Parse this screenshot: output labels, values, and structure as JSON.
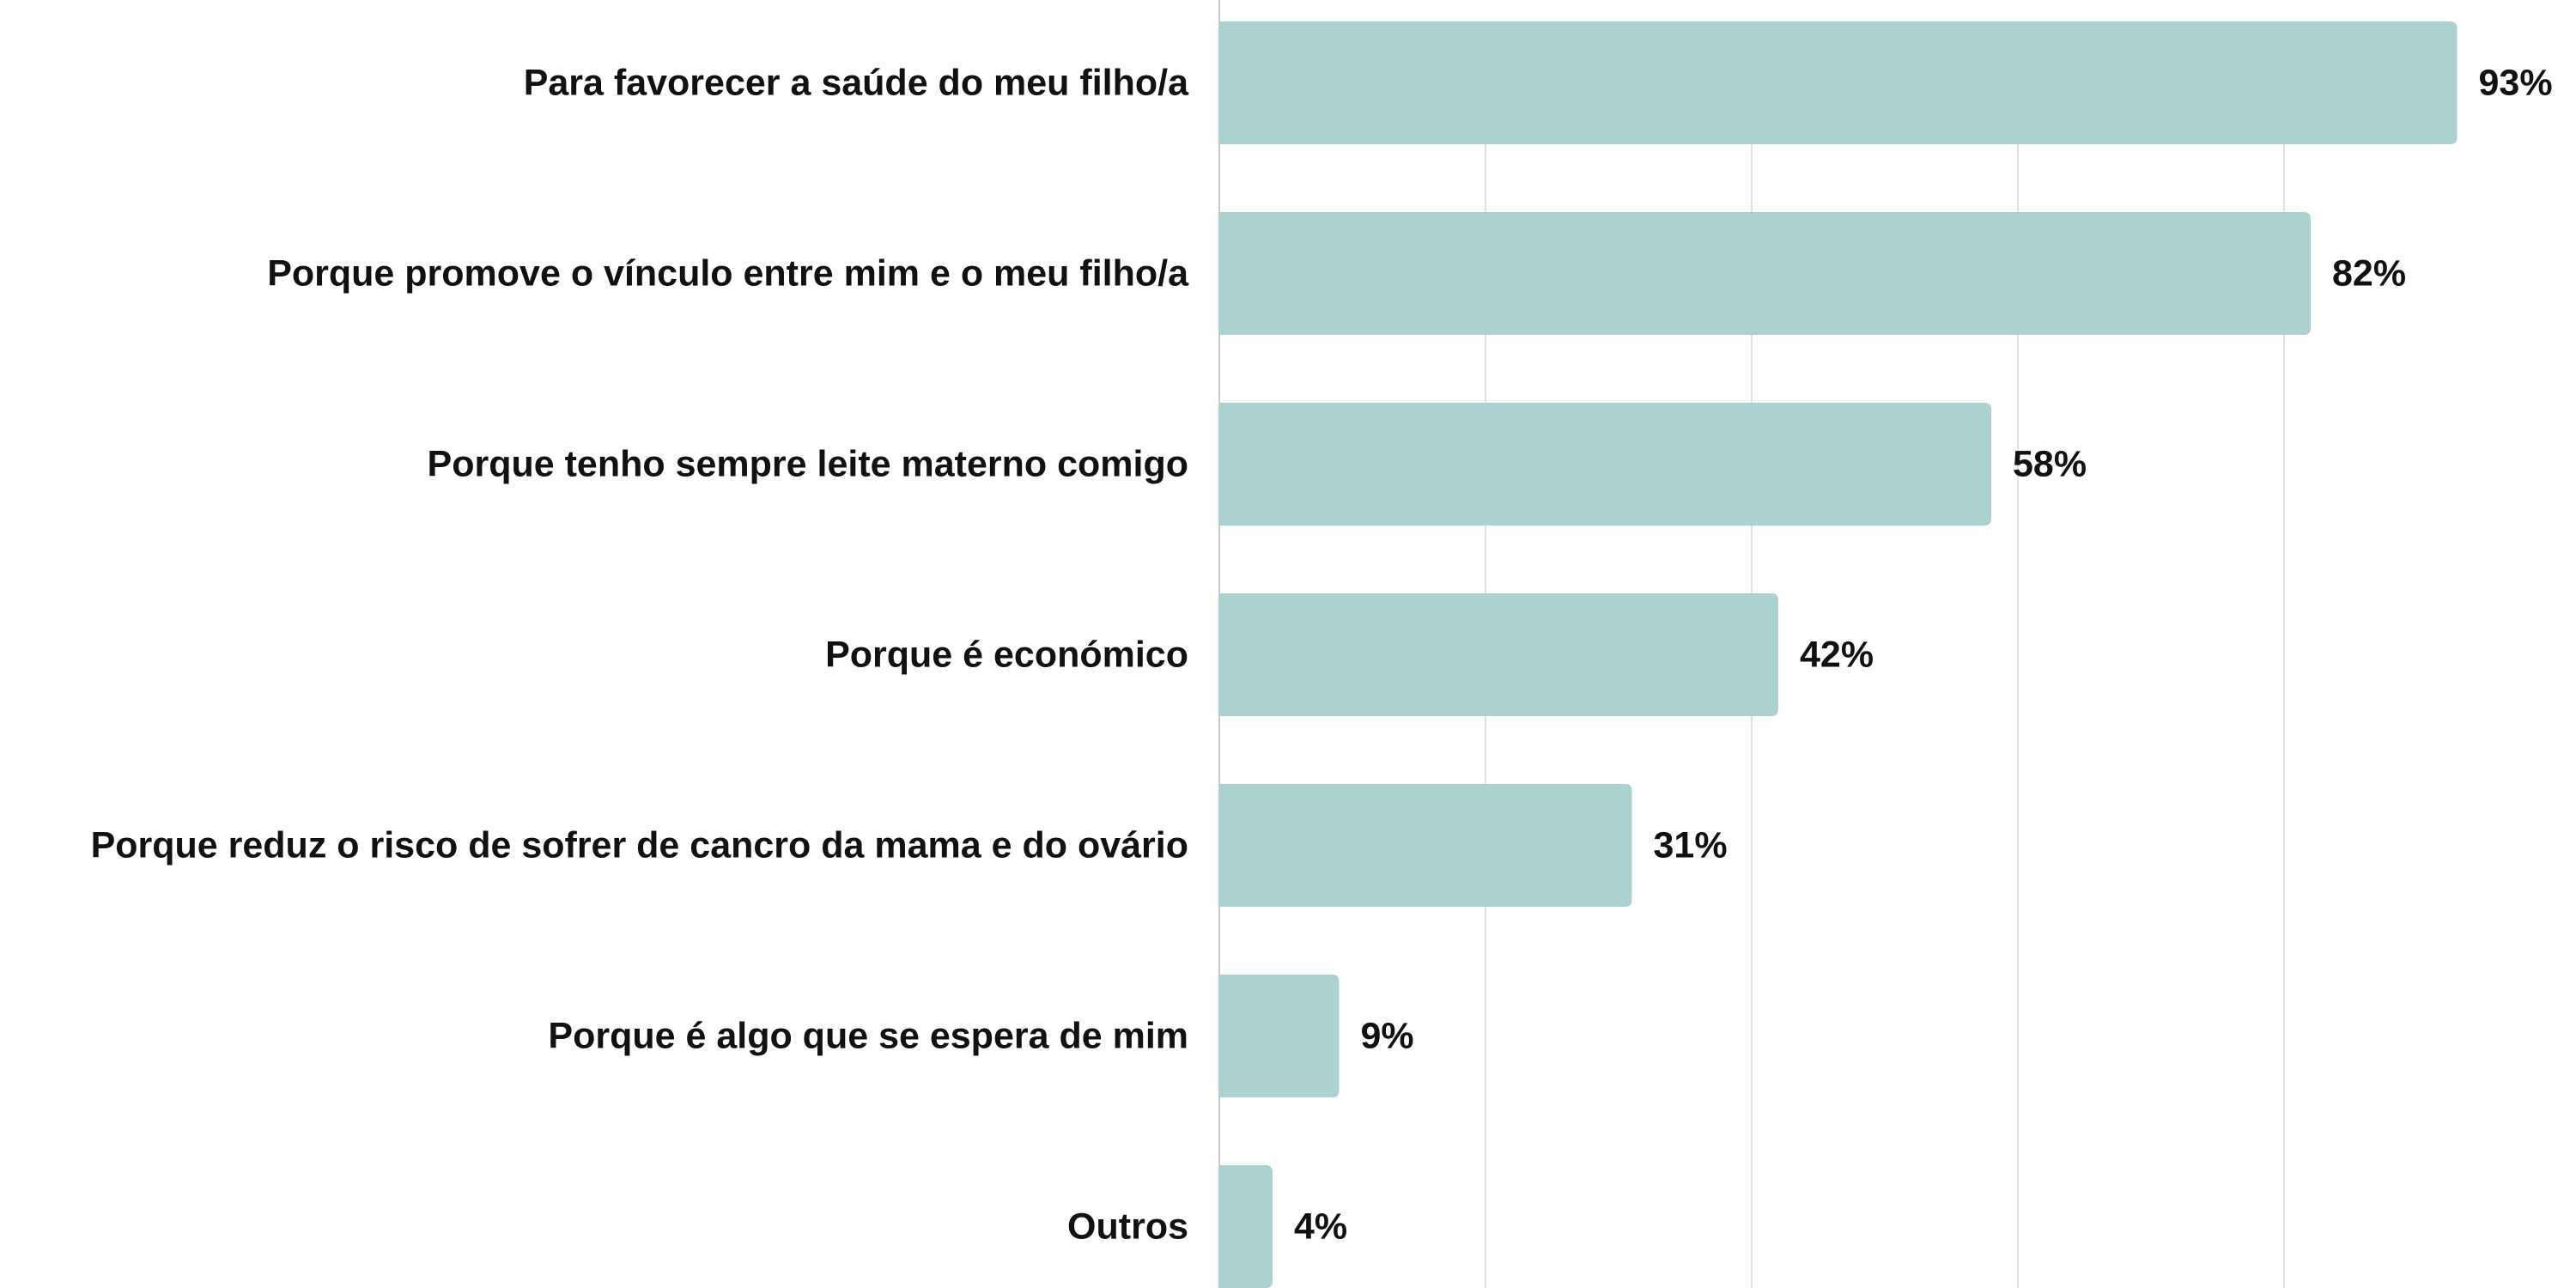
{
  "chart_data": {
    "type": "bar",
    "orientation": "horizontal",
    "categories": [
      "Para favorecer a saúde do meu filho/a",
      "Porque promove o vínculo entre mim e o meu filho/a",
      "Porque tenho sempre leite materno comigo",
      "Porque é económico",
      "Porque reduz o risco de sofrer de cancro da mama e do ovário",
      "Porque é algo que se espera de mim",
      "Outros"
    ],
    "values": [
      93,
      82,
      58,
      42,
      31,
      9,
      4
    ],
    "value_labels": [
      "93%",
      "82%",
      "58%",
      "42%",
      "31%",
      "9%",
      "4%"
    ],
    "xlim": [
      0,
      100
    ],
    "grid": true,
    "bar_color": "#abd2cf",
    "text_color": "#111111",
    "grid_color": "#e2e2e2"
  }
}
